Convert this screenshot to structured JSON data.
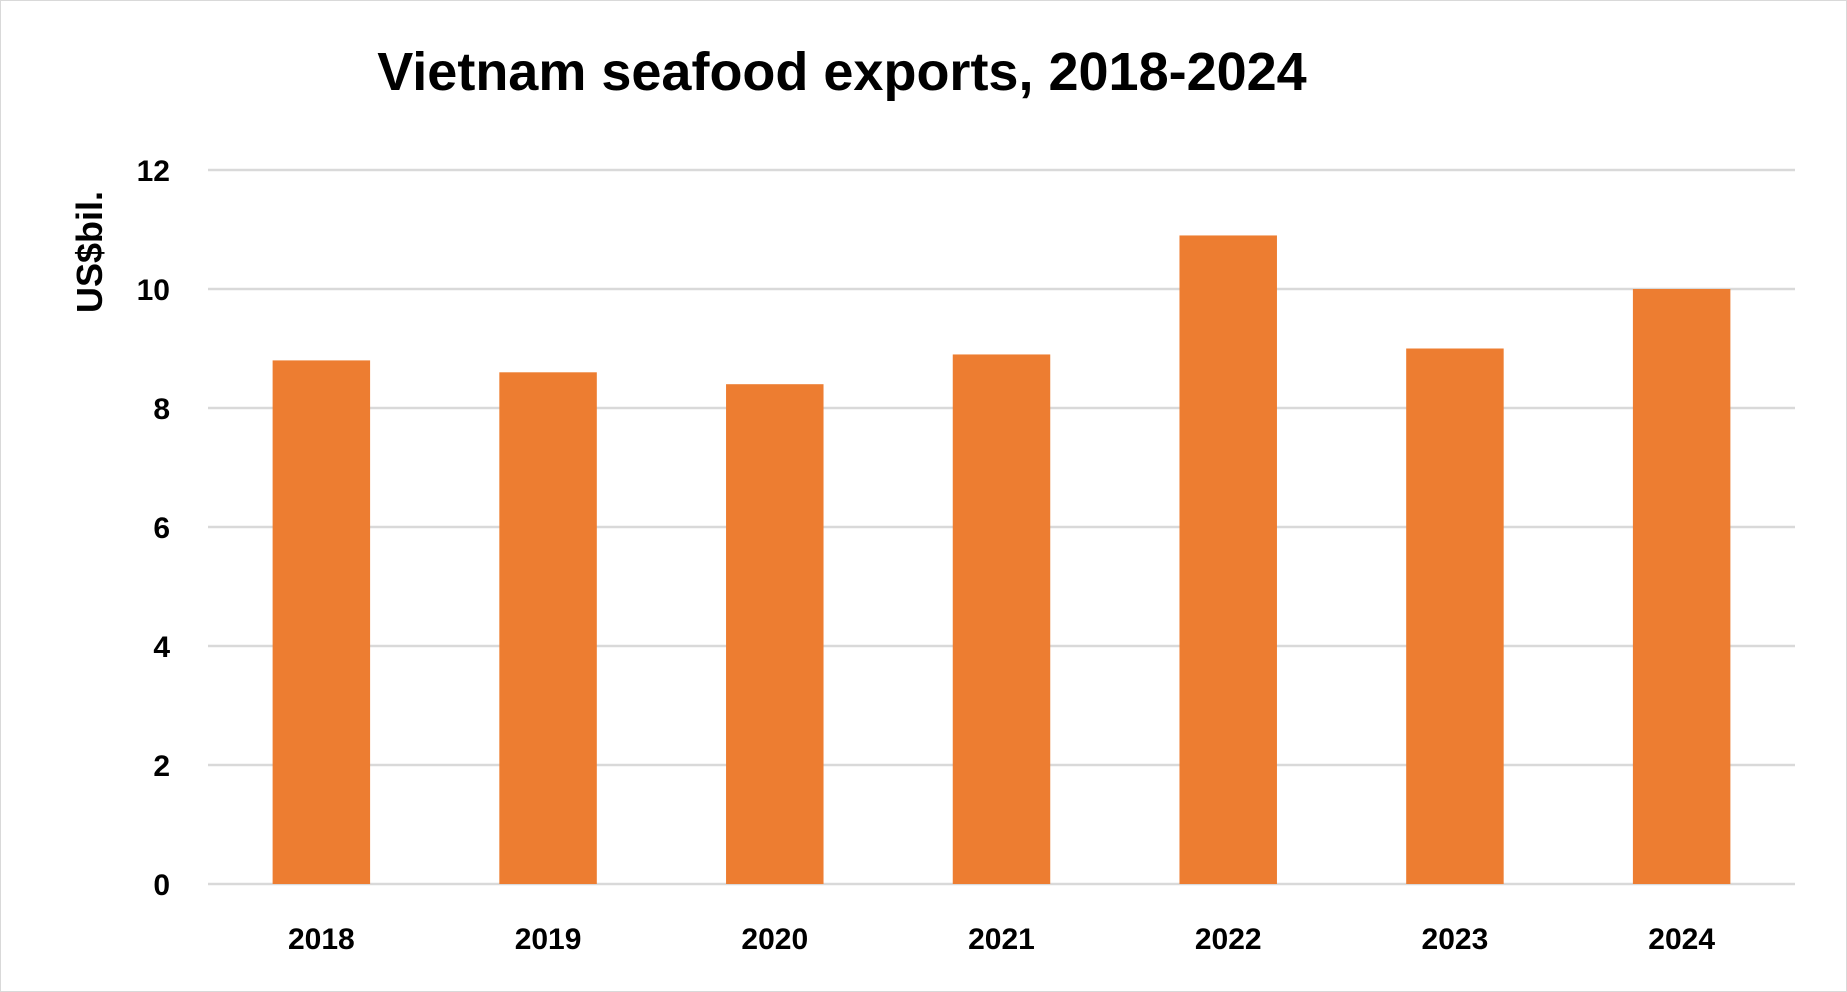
{
  "chart_data": {
    "type": "bar",
    "title": "Vietnam seafood exports, 2018-2024",
    "xlabel": "",
    "ylabel": "US$bil.",
    "categories": [
      "2018",
      "2019",
      "2020",
      "2021",
      "2022",
      "2023",
      "2024"
    ],
    "series": [
      {
        "values": [
          8.8,
          8.6,
          8.4,
          8.9,
          10.9,
          9.0,
          10.0
        ]
      }
    ],
    "ylim": [
      0,
      12
    ],
    "yticks": [
      0,
      2,
      4,
      6,
      8,
      10,
      12
    ],
    "grid": true,
    "legend": "none",
    "colors": {
      "bar": "#ED7D31",
      "grid": "#D9D9D9"
    }
  }
}
